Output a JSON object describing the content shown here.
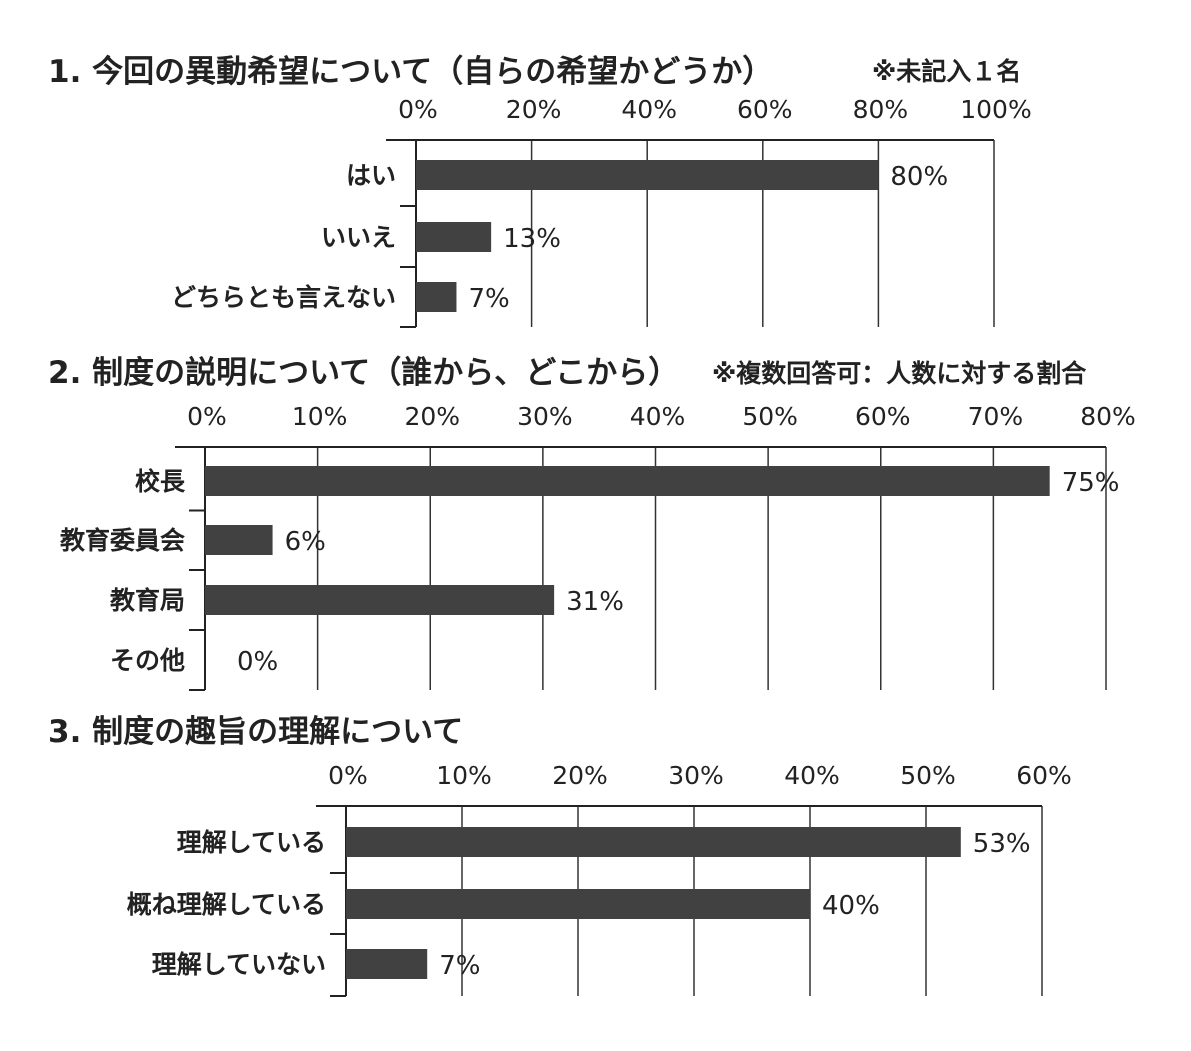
{
  "chart_data": [
    {
      "type": "bar",
      "orientation": "horizontal",
      "title": "1.  今回の異動希望について（自らの希望かどうか）",
      "note": "※未記入１名",
      "categories": [
        "はい",
        "いいえ",
        "どちらとも言えない"
      ],
      "values": [
        80,
        13,
        7
      ],
      "value_labels": [
        "80%",
        "13%",
        "7%"
      ],
      "xlim": [
        0,
        100
      ],
      "ticks": [
        0,
        20,
        40,
        60,
        80,
        100
      ],
      "tick_labels": [
        "0%",
        "20%",
        "40%",
        "60%",
        "80%",
        "100%"
      ],
      "grid": true
    },
    {
      "type": "bar",
      "orientation": "horizontal",
      "title": "2.  制度の説明について（誰から、どこから）",
      "note": "※複数回答可：人数に対する割合",
      "categories": [
        "校長",
        "教育委員会",
        "教育局",
        "その他"
      ],
      "values": [
        75,
        6,
        31,
        0
      ],
      "value_labels": [
        "75%",
        "6%",
        "31%",
        "0%"
      ],
      "xlim": [
        0,
        80
      ],
      "ticks": [
        0,
        10,
        20,
        30,
        40,
        50,
        60,
        70,
        80
      ],
      "tick_labels": [
        "0%",
        "10%",
        "20%",
        "30%",
        "40%",
        "50%",
        "60%",
        "70%",
        "80%"
      ],
      "grid": true
    },
    {
      "type": "bar",
      "orientation": "horizontal",
      "title": "3.  制度の趣旨の理解について",
      "note": "",
      "categories": [
        "理解している",
        "概ね理解している",
        "理解していない"
      ],
      "values": [
        53,
        40,
        7
      ],
      "value_labels": [
        "53%",
        "40%",
        "7%"
      ],
      "xlim": [
        0,
        60
      ],
      "ticks": [
        0,
        10,
        20,
        30,
        40,
        50,
        60
      ],
      "tick_labels": [
        "0%",
        "10%",
        "20%",
        "30%",
        "40%",
        "50%",
        "60%"
      ],
      "grid": true
    }
  ],
  "colors": {
    "bar": "#414141",
    "grid": "#333333"
  }
}
